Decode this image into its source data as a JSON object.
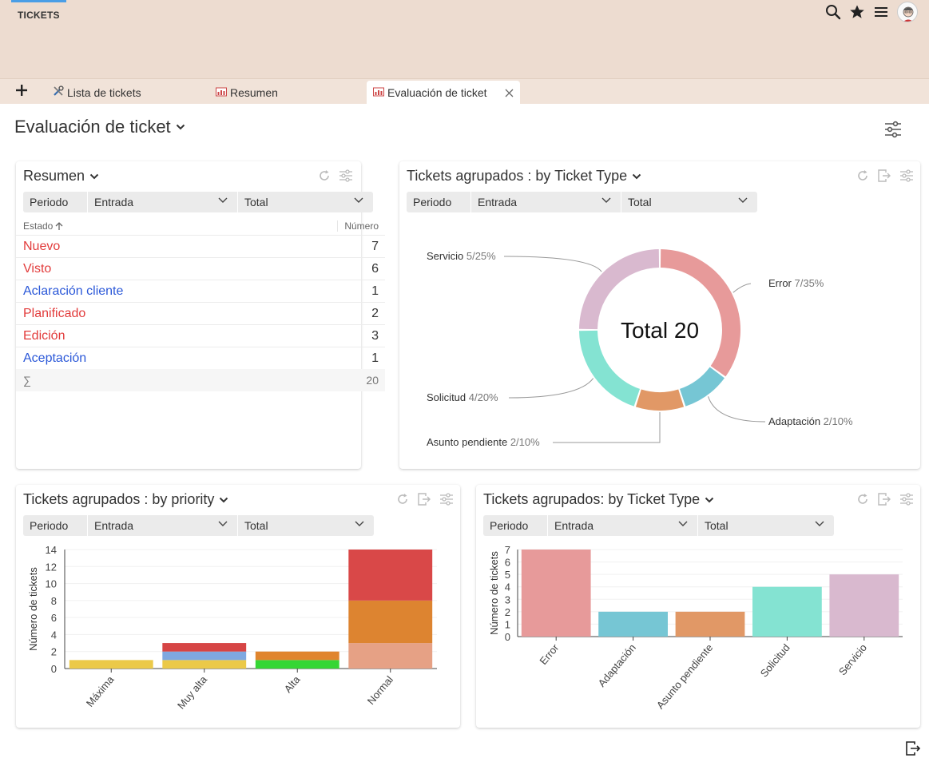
{
  "app": {
    "tab_label": "TICKETS"
  },
  "doc_tabs": [
    {
      "label": "Lista de tickets"
    },
    {
      "label": "Resumen"
    },
    {
      "label": "Evaluación de ticket"
    }
  ],
  "page": {
    "title": "Evaluación de ticket"
  },
  "filters": {
    "periodo": "Periodo",
    "entrada": "Entrada",
    "total": "Total"
  },
  "resumen": {
    "title": "Resumen",
    "col_estado": "Estado",
    "col_numero": "Número",
    "rows": [
      {
        "label": "Nuevo",
        "value": "7",
        "color": "#e23b3b"
      },
      {
        "label": "Visto",
        "value": "6",
        "color": "#e23b3b"
      },
      {
        "label": "Aclaración cliente",
        "value": "1",
        "color": "#2b58d8"
      },
      {
        "label": "Planificado",
        "value": "2",
        "color": "#e23b3b"
      },
      {
        "label": "Edición",
        "value": "3",
        "color": "#e23b3b"
      },
      {
        "label": "Aceptación",
        "value": "1",
        "color": "#2b58d8"
      }
    ],
    "sum_symbol": "∑",
    "sum_value": "20"
  },
  "donut_widget": {
    "title": "Tickets agrupados : by Ticket Type",
    "center_label": "Total 20"
  },
  "priority_widget": {
    "title": "Tickets agrupados : by priority"
  },
  "type_bar_widget": {
    "title": "Tickets agrupados: by Ticket Type"
  },
  "chart_data": [
    {
      "type": "pie",
      "donut": true,
      "slices": [
        {
          "label": "Error",
          "value": 7,
          "percent": 35,
          "text": "7/35%",
          "color": "#e79a9a"
        },
        {
          "label": "Adaptación",
          "value": 2,
          "percent": 10,
          "text": "2/10%",
          "color": "#76c6d4"
        },
        {
          "label": "Asunto pendiente",
          "value": 2,
          "percent": 10,
          "text": "2/10%",
          "color": "#e19866"
        },
        {
          "label": "Solicitud",
          "value": 4,
          "percent": 20,
          "text": "4/20%",
          "color": "#84e3d2"
        },
        {
          "label": "Servicio",
          "value": 5,
          "percent": 25,
          "text": "5/25%",
          "color": "#d9b9cf"
        }
      ]
    },
    {
      "type": "bar",
      "stacked": true,
      "ylabel": "Número de tickets",
      "ylim": [
        0,
        14
      ],
      "yticks": [
        "0",
        "2",
        "4",
        "6",
        "8",
        "10",
        "12",
        "14"
      ],
      "categories": [
        "Máxima",
        "Muy alta",
        "Alta",
        "Normal"
      ],
      "stacks": [
        [
          {
            "value": 1,
            "color": "#ebc949"
          }
        ],
        [
          {
            "value": 1,
            "color": "#ebc949"
          },
          {
            "value": 1,
            "color": "#7fa8e0"
          },
          {
            "value": 1,
            "color": "#d64545"
          }
        ],
        [
          {
            "value": 1,
            "color": "#35d635"
          },
          {
            "value": 1,
            "color": "#e0852e"
          }
        ],
        [
          {
            "value": 3,
            "color": "#e6a185"
          },
          {
            "value": 5,
            "color": "#dd8430"
          },
          {
            "value": 6,
            "color": "#d94848"
          }
        ]
      ]
    },
    {
      "type": "bar",
      "ylabel": "Número de tickets",
      "ylim": [
        0,
        7
      ],
      "yticks": [
        "0",
        "1",
        "2",
        "3",
        "4",
        "5",
        "6",
        "7"
      ],
      "categories": [
        "Error",
        "Adaptación",
        "Asunto pendiente",
        "Solicitud",
        "Servicio"
      ],
      "values": [
        7,
        2,
        2,
        4,
        5
      ],
      "colors": [
        "#e79a9a",
        "#76c6d4",
        "#e19866",
        "#84e3d2",
        "#d9b9cf"
      ]
    }
  ]
}
